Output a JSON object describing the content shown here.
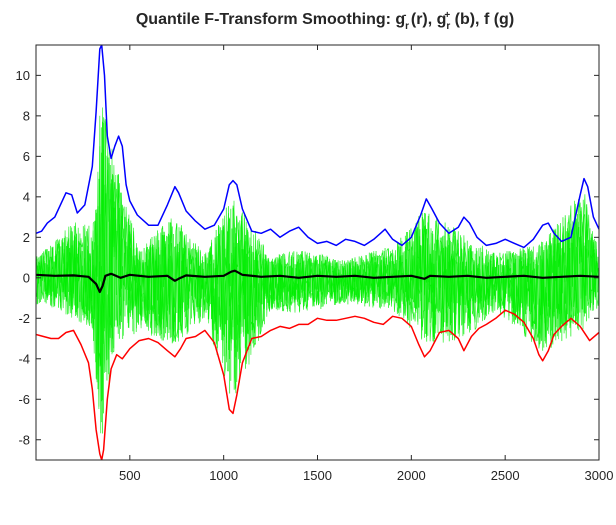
{
  "chart_data": {
    "type": "line",
    "title": {
      "parts": [
        {
          "text": "Quantile F-Transform Smoothing: g"
        },
        {
          "text": "r",
          "sub": true
        },
        {
          "text": "-",
          "sup": true
        },
        {
          "text": " (r), g"
        },
        {
          "text": "r",
          "sub": true
        },
        {
          "text": "+",
          "sup": true
        },
        {
          "text": " (b), f (g)"
        }
      ]
    },
    "xlabel": "",
    "ylabel": "",
    "xlim": [
      0,
      3000
    ],
    "ylim": [
      -9,
      11.5
    ],
    "xticks": [
      500,
      1000,
      1500,
      2000,
      2500,
      3000
    ],
    "yticks": [
      -8,
      -6,
      -4,
      -2,
      0,
      2,
      4,
      6,
      8,
      10
    ],
    "grid": false,
    "legend": "none",
    "series": [
      {
        "color": "#00ee00",
        "style": "dense-signal-with-stems",
        "description_points": {
          "x": [
            0,
            100,
            190,
            300,
            345,
            430,
            550,
            740,
            900,
            1050,
            1250,
            1400,
            1650,
            1900,
            2080,
            2270,
            2450,
            2700,
            2920,
            3000
          ],
          "upper": [
            1.2,
            1.8,
            3.0,
            2.5,
            9.3,
            5.5,
            1.5,
            3.2,
            1.2,
            4.2,
            1.1,
            1.4,
            0.9,
            1.6,
            3.5,
            2.2,
            1.2,
            1.8,
            4.4,
            1.2
          ],
          "lower": [
            -1.3,
            -1.5,
            -2.0,
            -2.5,
            -8.2,
            -3.5,
            -2.6,
            -3.4,
            -2.0,
            -6.3,
            -1.6,
            -1.8,
            -1.3,
            -1.6,
            -3.4,
            -3.2,
            -1.6,
            -3.7,
            -2.6,
            -1.4
          ]
        }
      },
      {
        "color": "#0000ff",
        "x": [
          0,
          30,
          60,
          100,
          130,
          160,
          190,
          220,
          260,
          300,
          320,
          340,
          350,
          365,
          380,
          400,
          420,
          440,
          460,
          480,
          500,
          540,
          600,
          650,
          700,
          740,
          760,
          800,
          850,
          900,
          950,
          1000,
          1030,
          1050,
          1070,
          1100,
          1150,
          1200,
          1250,
          1300,
          1350,
          1400,
          1450,
          1500,
          1550,
          1600,
          1650,
          1700,
          1750,
          1800,
          1860,
          1900,
          1950,
          2000,
          2050,
          2080,
          2110,
          2150,
          2200,
          2250,
          2280,
          2310,
          2350,
          2400,
          2450,
          2500,
          2550,
          2600,
          2650,
          2700,
          2730,
          2760,
          2800,
          2850,
          2900,
          2920,
          2940,
          2970,
          3000
        ],
        "y": [
          2.2,
          2.3,
          2.7,
          3.0,
          3.6,
          4.2,
          4.1,
          3.2,
          3.6,
          5.5,
          8.2,
          11.3,
          11.5,
          10.0,
          7.0,
          5.9,
          6.5,
          7.0,
          6.5,
          4.6,
          3.8,
          3.1,
          2.6,
          2.6,
          3.6,
          4.5,
          4.2,
          3.3,
          2.8,
          2.4,
          2.6,
          3.4,
          4.6,
          4.8,
          4.6,
          3.4,
          2.3,
          2.2,
          2.4,
          2.0,
          2.3,
          2.5,
          2.0,
          1.7,
          1.8,
          1.6,
          1.9,
          1.8,
          1.6,
          1.9,
          2.4,
          1.9,
          1.6,
          2.0,
          3.1,
          3.9,
          3.4,
          2.7,
          2.2,
          2.5,
          3.0,
          2.7,
          2.0,
          1.6,
          1.7,
          1.9,
          1.7,
          1.5,
          1.9,
          2.6,
          2.7,
          2.2,
          1.8,
          2.0,
          4.1,
          4.9,
          4.5,
          3.0,
          2.4
        ]
      },
      {
        "color": "#ff0000",
        "x": [
          0,
          40,
          80,
          120,
          160,
          200,
          240,
          280,
          300,
          320,
          340,
          350,
          360,
          380,
          400,
          430,
          460,
          500,
          550,
          600,
          650,
          700,
          740,
          770,
          800,
          850,
          900,
          950,
          1000,
          1030,
          1050,
          1070,
          1100,
          1150,
          1200,
          1250,
          1300,
          1350,
          1400,
          1450,
          1500,
          1550,
          1600,
          1650,
          1700,
          1750,
          1800,
          1850,
          1900,
          1950,
          2000,
          2040,
          2070,
          2100,
          2150,
          2200,
          2250,
          2280,
          2320,
          2360,
          2400,
          2450,
          2500,
          2550,
          2600,
          2650,
          2680,
          2700,
          2730,
          2760,
          2800,
          2850,
          2900,
          2950,
          3000
        ],
        "y": [
          -2.8,
          -2.9,
          -3.0,
          -3.0,
          -2.7,
          -2.6,
          -3.3,
          -4.2,
          -5.5,
          -7.5,
          -8.7,
          -9.0,
          -8.5,
          -6.0,
          -4.5,
          -3.8,
          -4.0,
          -3.5,
          -3.1,
          -3.0,
          -3.2,
          -3.6,
          -3.9,
          -3.5,
          -3.0,
          -2.9,
          -2.6,
          -3.2,
          -4.8,
          -6.5,
          -6.7,
          -5.8,
          -4.2,
          -3.0,
          -2.9,
          -2.6,
          -2.4,
          -2.5,
          -2.3,
          -2.3,
          -2.0,
          -2.1,
          -2.1,
          -2.0,
          -1.9,
          -2.0,
          -2.2,
          -2.3,
          -1.9,
          -2.0,
          -2.4,
          -3.3,
          -3.9,
          -3.6,
          -2.7,
          -2.6,
          -3.0,
          -3.6,
          -2.9,
          -2.5,
          -2.3,
          -2.0,
          -1.6,
          -1.8,
          -2.2,
          -3.0,
          -3.8,
          -4.1,
          -3.6,
          -2.8,
          -2.4,
          -2.0,
          -2.4,
          -3.1,
          -2.7
        ]
      },
      {
        "color": "#000000",
        "x": [
          0,
          100,
          200,
          280,
          320,
          340,
          355,
          370,
          400,
          450,
          500,
          600,
          700,
          740,
          760,
          800,
          900,
          1000,
          1040,
          1060,
          1100,
          1200,
          1300,
          1400,
          1500,
          1600,
          1700,
          1800,
          1900,
          2000,
          2070,
          2100,
          2200,
          2300,
          2400,
          2500,
          2600,
          2700,
          2800,
          2900,
          3000
        ],
        "y": [
          0.15,
          0.1,
          0.12,
          0.05,
          -0.3,
          -0.7,
          -0.4,
          0.1,
          0.2,
          0.0,
          0.15,
          0.05,
          0.1,
          -0.15,
          -0.05,
          0.12,
          0.05,
          0.1,
          0.3,
          0.35,
          0.15,
          0.05,
          0.1,
          0.0,
          0.1,
          0.05,
          0.1,
          0.0,
          0.05,
          0.1,
          -0.05,
          0.1,
          0.05,
          0.1,
          0.0,
          0.05,
          0.1,
          0.0,
          0.05,
          0.1,
          0.05
        ]
      }
    ]
  }
}
